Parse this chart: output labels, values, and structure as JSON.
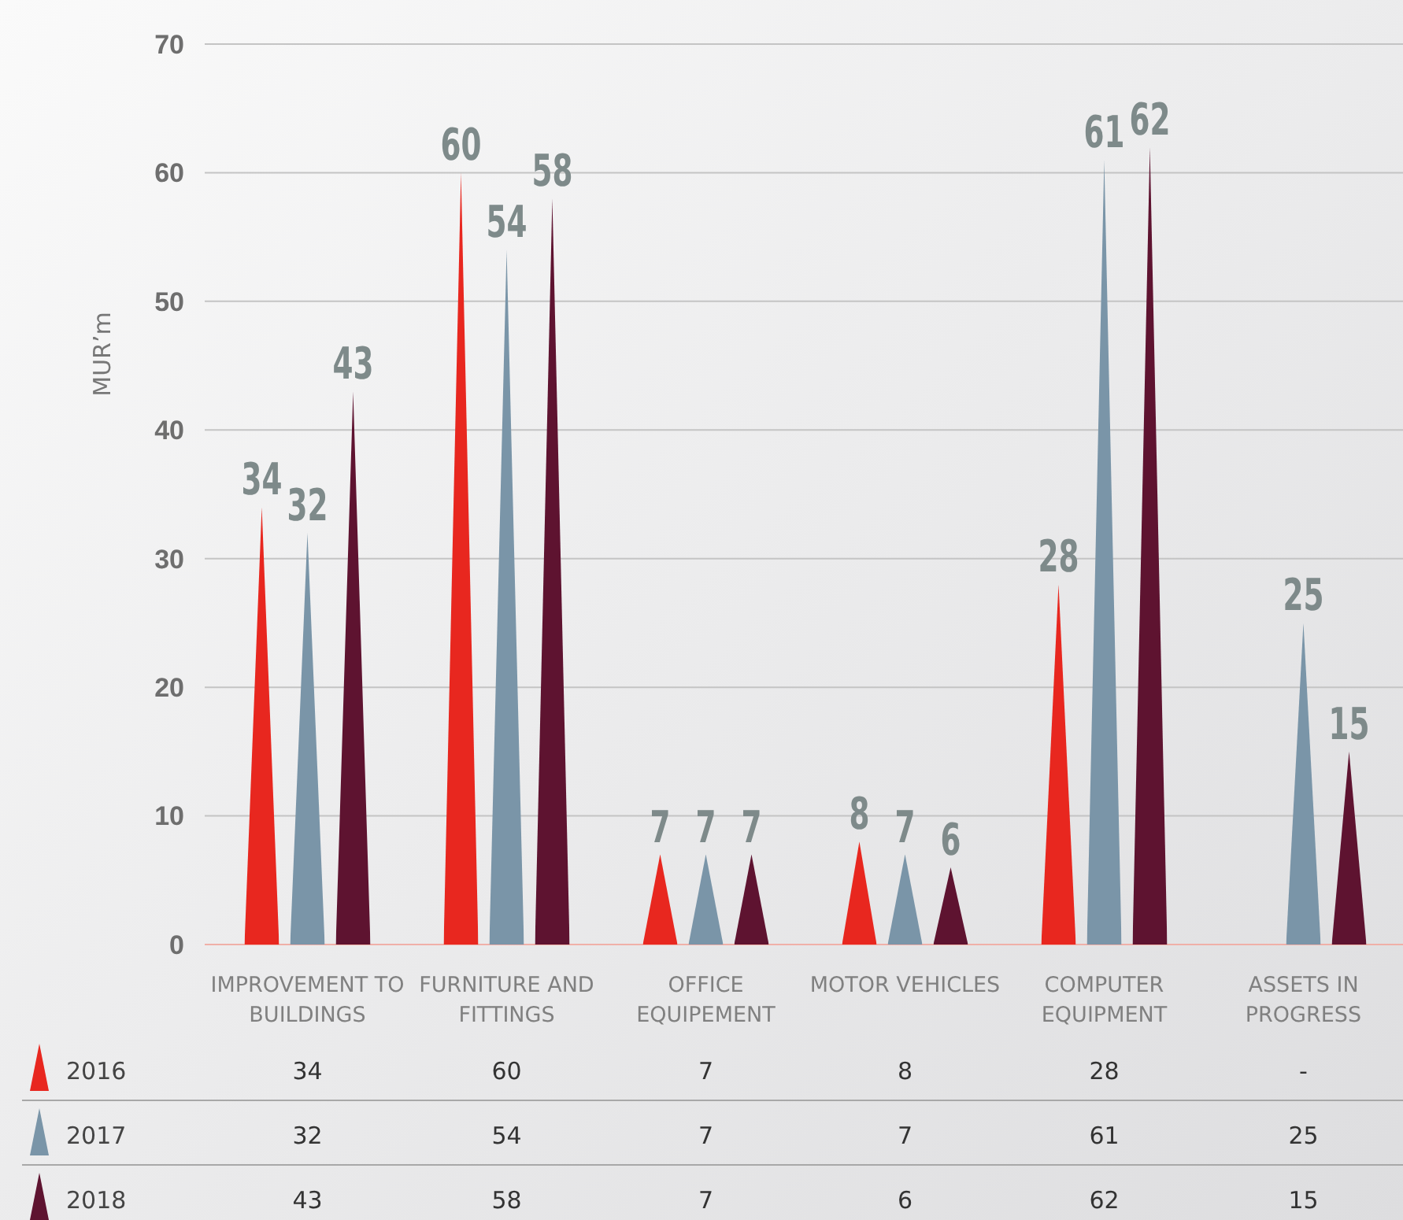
{
  "chart_data": {
    "type": "bar",
    "ylabel": "MUR’m",
    "categories": [
      "IMPROVEMENT TO BUILDINGS",
      "FURNITURE AND FITTINGS",
      "OFFICE EQUIPEMENT",
      "MOTOR VEHICLES",
      "COMPUTER EQUIPMENT",
      "ASSETS IN PROGRESS"
    ],
    "series": [
      {
        "name": "2016",
        "color": "#e8271f",
        "values": [
          34,
          60,
          7,
          8,
          28,
          null
        ],
        "value_labels": [
          "34",
          "60",
          "7",
          "8",
          "28",
          "-"
        ]
      },
      {
        "name": "2017",
        "color": "#7a95a8",
        "values": [
          32,
          54,
          7,
          7,
          61,
          25
        ],
        "value_labels": [
          "32",
          "54",
          "7",
          "7",
          "61",
          "25"
        ]
      },
      {
        "name": "2018",
        "color": "#5e1330",
        "values": [
          43,
          58,
          7,
          6,
          62,
          15
        ],
        "value_labels": [
          "43",
          "58",
          "7",
          "6",
          "62",
          "15"
        ]
      }
    ],
    "ylim": [
      0,
      70
    ],
    "yticks": [
      0,
      10,
      20,
      30,
      40,
      50,
      60,
      70
    ],
    "grid": "y",
    "legend": "bottom"
  }
}
